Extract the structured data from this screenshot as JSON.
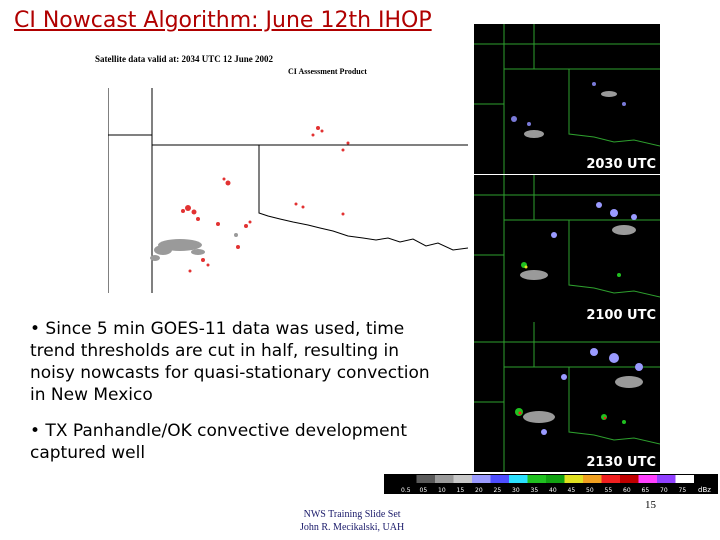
{
  "slide": {
    "title": "CI Nowcast Algorithm: June 12th IHOP",
    "satellite_caption": "Satellite data valid at: 2034 UTC 12 June 2002",
    "product_label": "CI Assessment Product",
    "bullets": [
      "• Since 5 min GOES-11 data was used, time trend thresholds are cut in half, resulting in noisy nowcasts for quasi-stationary convection in New Mexico",
      "• TX Panhandle/OK convective development captured well"
    ],
    "footer": {
      "line1": "NWS Training Slide Set",
      "line2": "John R. Mecikalski, UAH"
    },
    "slide_number": "15"
  },
  "radar_panels": [
    {
      "time": "2030 UTC"
    },
    {
      "time": "2100 UTC"
    },
    {
      "time": "2130 UTC"
    }
  ],
  "colorbar": {
    "label": "dBz",
    "ticks": [
      "0.5",
      "05",
      "10",
      "15",
      "20",
      "25",
      "30",
      "35",
      "40",
      "45",
      "50",
      "55",
      "60",
      "65",
      "70",
      "75"
    ],
    "colors": [
      "#000000",
      "#5a5a5a",
      "#9a9a9a",
      "#c8c8c8",
      "#9b9bff",
      "#4e4eff",
      "#2ae0ff",
      "#20c020",
      "#11a011",
      "#e0e020",
      "#f0a020",
      "#f02020",
      "#c00000",
      "#ff40ff",
      "#9040ff",
      "#ffffff"
    ]
  }
}
